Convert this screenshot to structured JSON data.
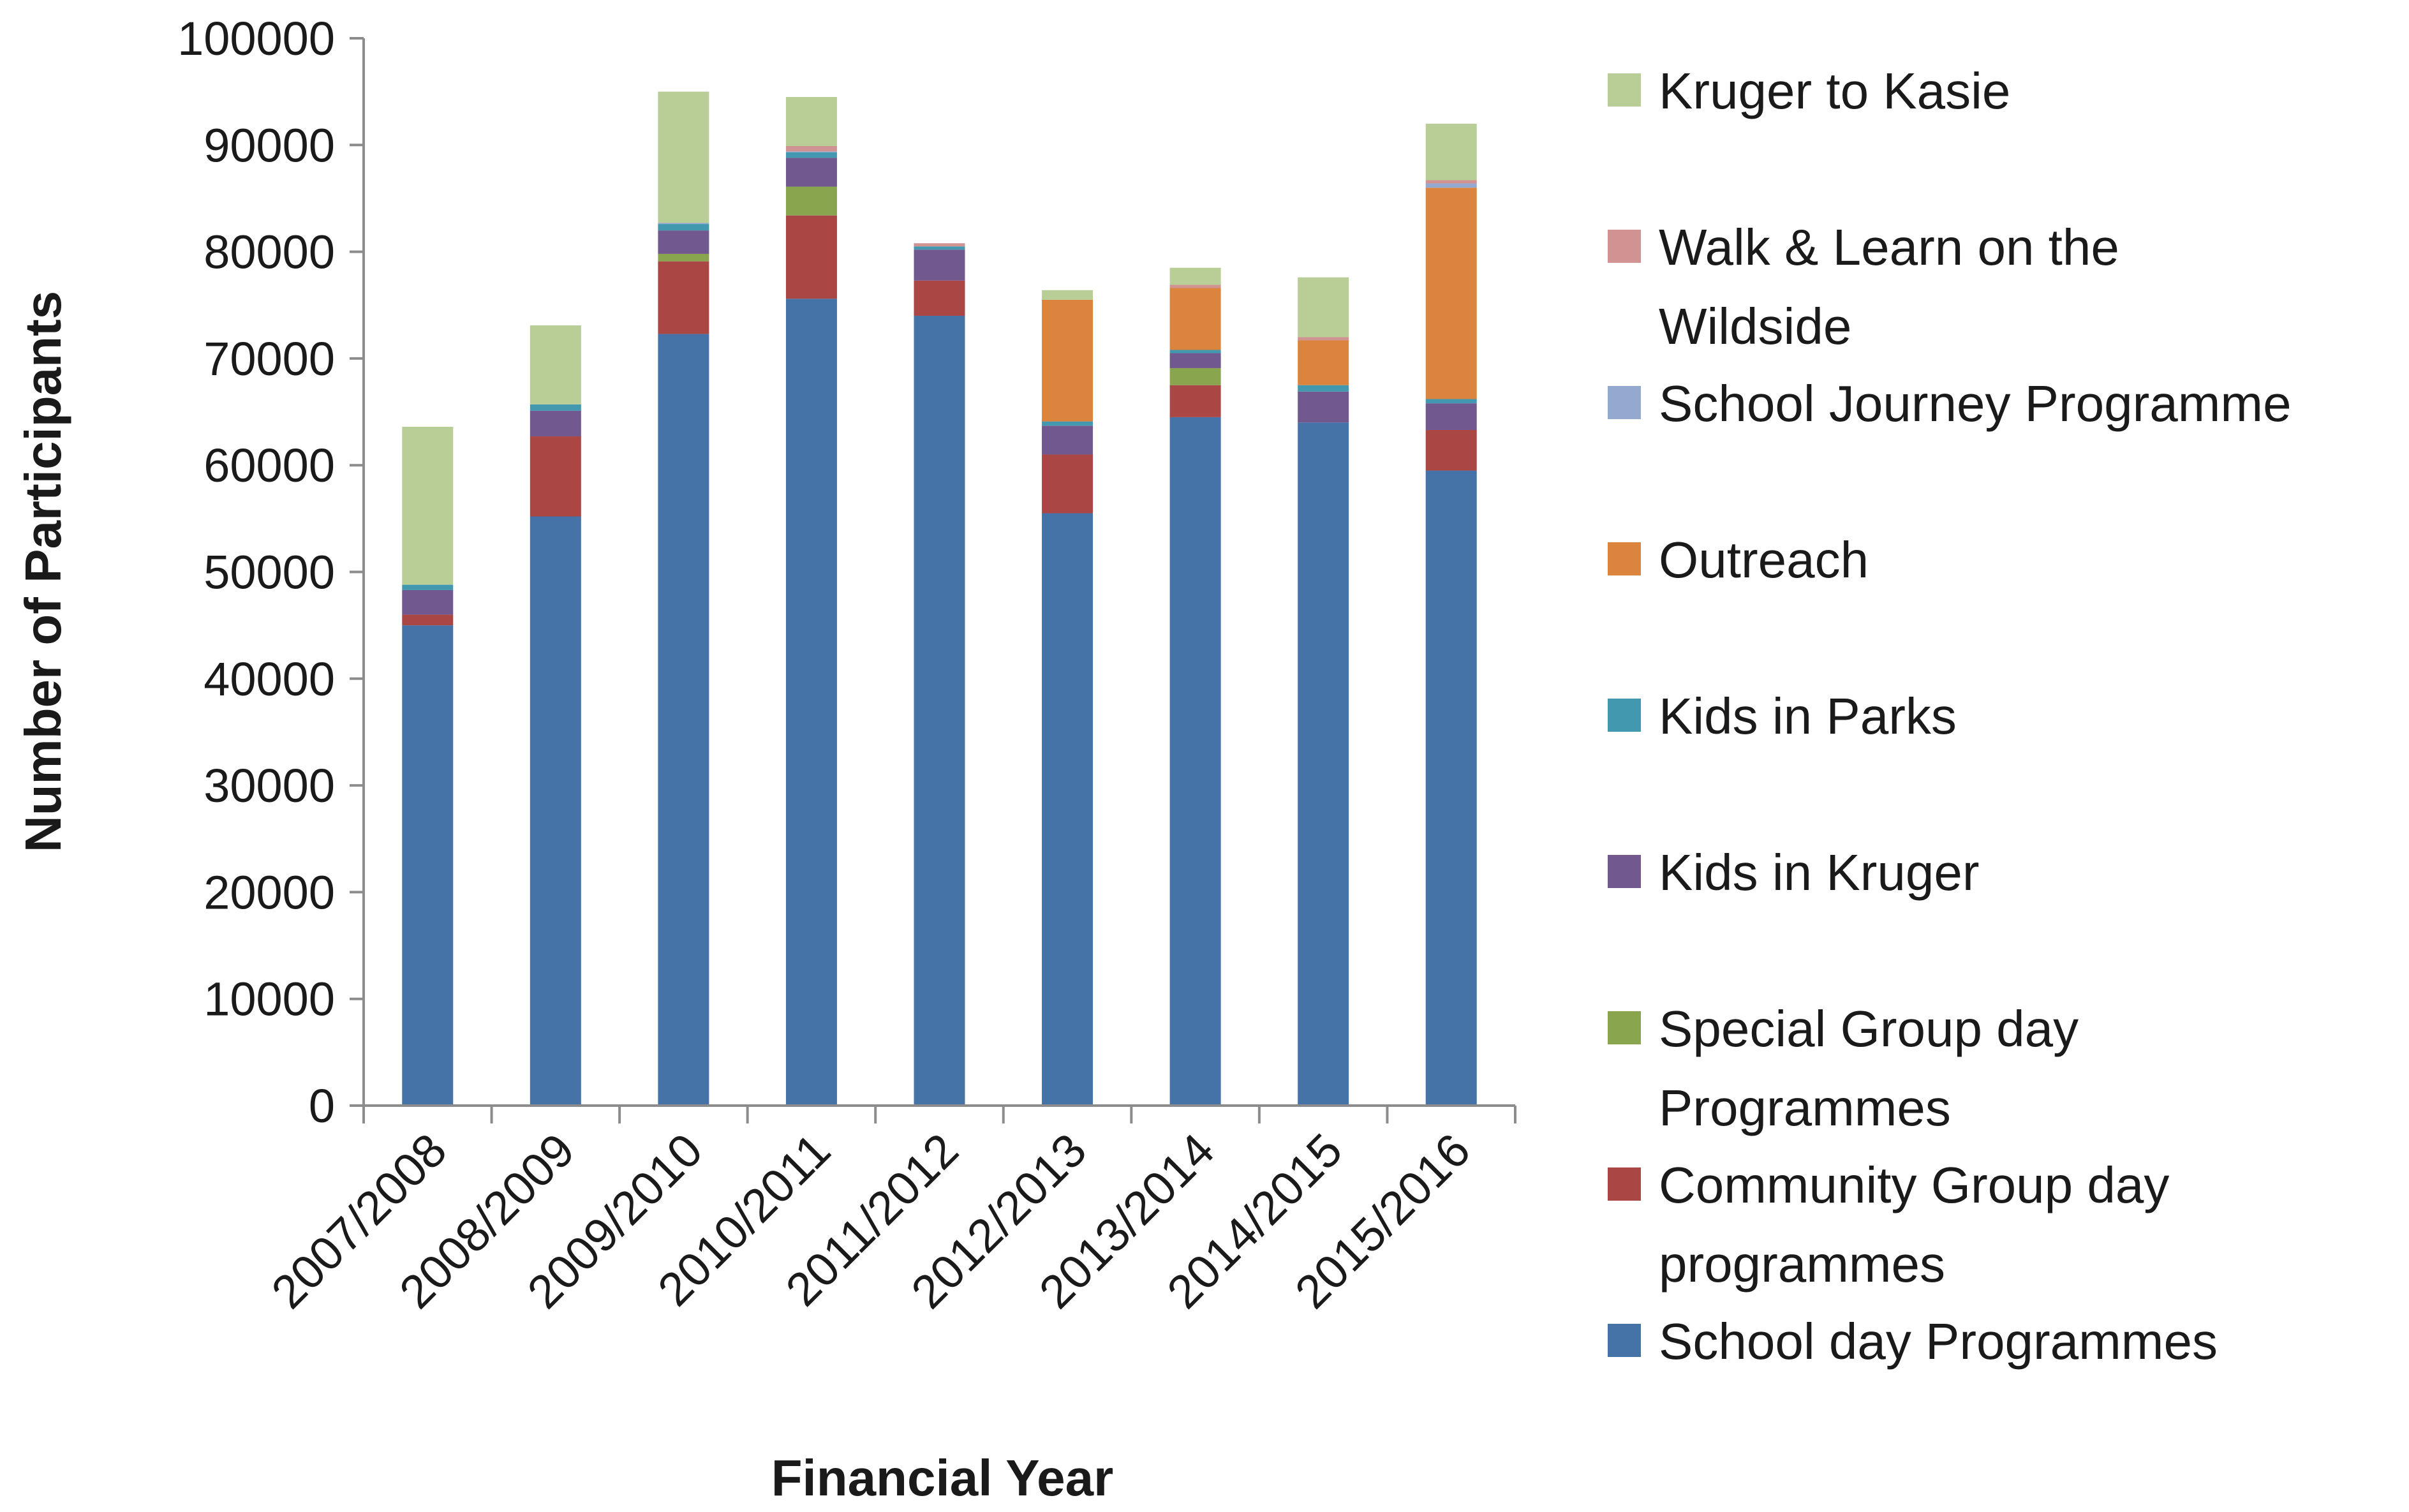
{
  "chart_data": {
    "type": "bar",
    "stacked": true,
    "title": "",
    "xlabel": "Financial Year",
    "ylabel": "Number of Participants",
    "ylim": [
      0,
      100000
    ],
    "yticks": [
      "0",
      "10000",
      "20000",
      "30000",
      "40000",
      "50000",
      "60000",
      "70000",
      "80000",
      "90000",
      "100000"
    ],
    "categories": [
      "2007/2008",
      "2008/2009",
      "2009/2010",
      "2010/2011",
      "2011/2012",
      "2012/2013",
      "2013/2014",
      "2014/2015",
      "2015/2016"
    ],
    "series": [
      {
        "name": "School day Programmes",
        "color": "#4572A7",
        "values": [
          45000,
          55200,
          72300,
          75600,
          74000,
          55500,
          64500,
          64000,
          59500
        ]
      },
      {
        "name": "Community Group day programmes",
        "color": "#AA4643",
        "values": [
          1000,
          7500,
          6800,
          7800,
          3300,
          5500,
          3000,
          0,
          3800
        ]
      },
      {
        "name": "Special Group day Programmes",
        "color": "#89A54E",
        "values": [
          0,
          0,
          700,
          2700,
          0,
          0,
          1600,
          0,
          0
        ]
      },
      {
        "name": "Kids in Kruger",
        "color": "#71588F",
        "values": [
          2300,
          2400,
          2200,
          2700,
          2900,
          2700,
          1400,
          2900,
          2500
        ]
      },
      {
        "name": "Kids in Parks",
        "color": "#4198AF",
        "values": [
          500,
          600,
          600,
          500,
          300,
          400,
          300,
          600,
          400
        ]
      },
      {
        "name": "Outreach",
        "color": "#DB843D",
        "values": [
          0,
          0,
          0,
          0,
          0,
          11400,
          5800,
          4200,
          19800
        ]
      },
      {
        "name": "School Journey Programme",
        "color": "#93A9CF",
        "values": [
          0,
          0,
          100,
          100,
          0,
          0,
          0,
          0,
          400
        ]
      },
      {
        "name": "Walk & Learn on the Wildside",
        "color": "#D19392",
        "values": [
          0,
          0,
          0,
          500,
          300,
          0,
          300,
          300,
          300
        ]
      },
      {
        "name": "Kruger to Kasie",
        "color": "#B9CD96",
        "values": [
          14800,
          7400,
          12300,
          4600,
          0,
          900,
          1600,
          5600,
          5300
        ]
      }
    ],
    "legend": {
      "position": "right",
      "entries": [
        {
          "lines": [
            "Kruger to Kasie"
          ],
          "color": "#B9CD96"
        },
        {
          "lines": [
            "Walk & Learn on the",
            "Wildside"
          ],
          "color": "#D19392"
        },
        {
          "lines": [
            "School Journey Programme"
          ],
          "color": "#93A9CF"
        },
        {
          "lines": [
            "Outreach"
          ],
          "color": "#DB843D"
        },
        {
          "lines": [
            "Kids in Parks"
          ],
          "color": "#4198AF"
        },
        {
          "lines": [
            "Kids in Kruger"
          ],
          "color": "#71588F"
        },
        {
          "lines": [
            "Special Group day",
            "Programmes"
          ],
          "color": "#89A54E"
        },
        {
          "lines": [
            "Community Group day",
            "programmes"
          ],
          "color": "#AA4643"
        },
        {
          "lines": [
            "School day Programmes"
          ],
          "color": "#4572A7"
        }
      ]
    }
  }
}
